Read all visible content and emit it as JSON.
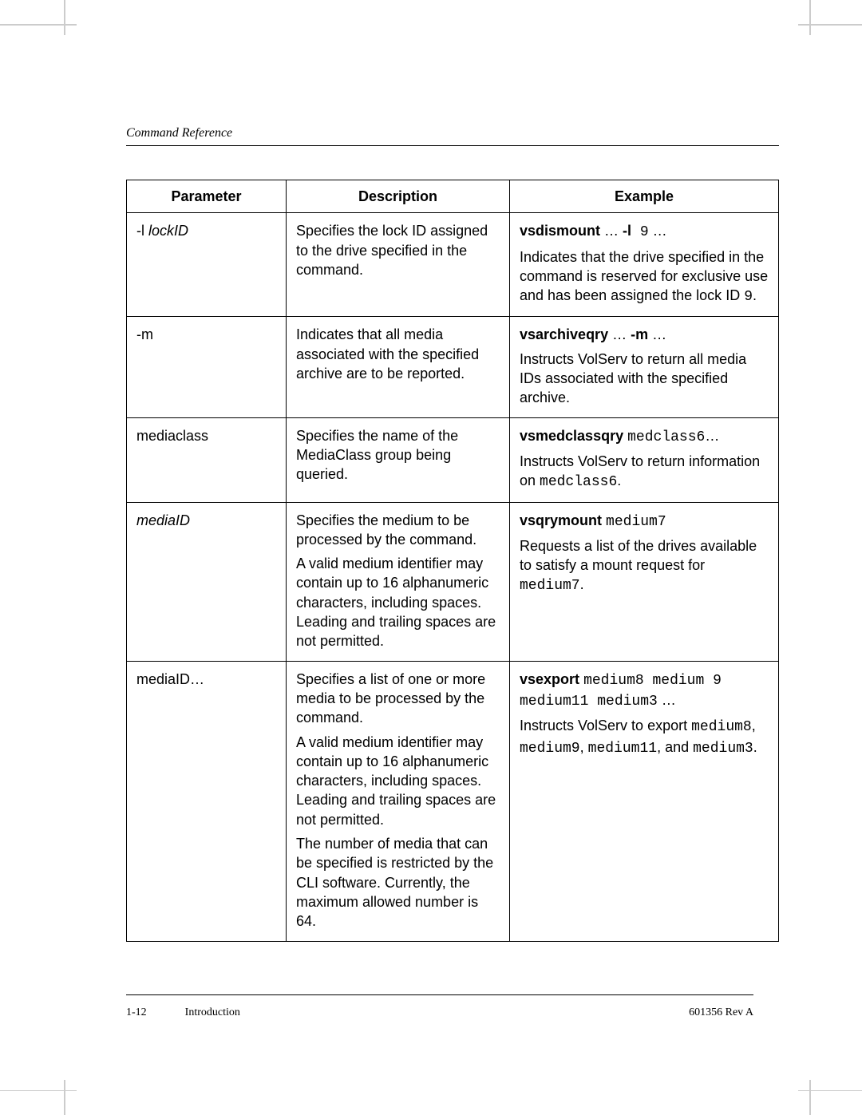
{
  "header": {
    "running_head": "Command Reference"
  },
  "table": {
    "columns": [
      "Parameter",
      "Description",
      "Example"
    ],
    "rows": [
      {
        "param_prefix": "-l ",
        "param_ital": "lockID",
        "param_suffix": "",
        "desc": [
          "Specifies the lock ID assigned to the drive specified in the command."
        ],
        "ex_cmd": "vsdismount",
        "ex_mid": " … ",
        "ex_flag": "-l",
        "ex_arg": " 9",
        "ex_tail": " …",
        "ex_body_pre": "Indicates that the drive specified in the command is reserved for exclusive use and has been assigned the lock ID ",
        "ex_body_mono": "9",
        "ex_body_post": "."
      },
      {
        "param_prefix": "-m",
        "param_ital": "",
        "param_suffix": "",
        "desc": [
          "Indicates that all media associated with the specified archive are to be reported."
        ],
        "ex_cmd": "vsarchiveqry",
        "ex_mid": " … ",
        "ex_flag": "-m",
        "ex_arg": "",
        "ex_tail": " …",
        "ex_body_pre": "Instructs VolServ to return all media IDs associated with the specified archive.",
        "ex_body_mono": "",
        "ex_body_post": ""
      },
      {
        "param_prefix": "mediaclass",
        "param_ital": "",
        "param_suffix": "",
        "desc": [
          "Specifies the name of the MediaClass group being queried."
        ],
        "ex_cmd": "vsmedclassqry",
        "ex_mid": " ",
        "ex_flag": "",
        "ex_arg": "medclass6",
        "ex_tail": "…",
        "ex_body_pre": "Instructs VolServ to return information on ",
        "ex_body_mono": "medclass6",
        "ex_body_post": "."
      },
      {
        "param_prefix": "",
        "param_ital": "mediaID",
        "param_suffix": "",
        "desc": [
          "Specifies the medium to be processed by the command.",
          "A valid medium identifier may contain up to 16 alphanumeric characters, including spaces. Leading and trailing spaces are not permitted."
        ],
        "ex_cmd": "vsqrymount",
        "ex_mid": " ",
        "ex_flag": "",
        "ex_arg": "medium7",
        "ex_tail": "",
        "ex_body_pre": "Requests a list of the drives available to satisfy a mount request for ",
        "ex_body_mono": "medium7",
        "ex_body_post": "."
      },
      {
        "param_prefix": "mediaID…",
        "param_ital": "",
        "param_suffix": "",
        "desc": [
          "Specifies a list of one or more media to be processed by the command.",
          "A valid medium identifier may contain up to 16 alphanumeric characters, including spaces. Leading and trailing spaces are not permitted.",
          "The number of media that can be specified is restricted by the CLI software. Currently, the maximum allowed number is 64."
        ],
        "ex_cmd": "vsexport",
        "ex_mid": " ",
        "ex_flag": "",
        "ex_arg": "medium8 medium 9 medium11 medium3",
        "ex_tail": " …",
        "ex_body_pre": "Instructs VolServ to export ",
        "ex_body_mono": "medium8",
        "ex_body_post": ", ",
        "ex_body_mono2": "medium9",
        "ex_body_post2": ", ",
        "ex_body_mono3": "medium11",
        "ex_body_post3": ", and ",
        "ex_body_mono4": "medium3",
        "ex_body_post4": "."
      }
    ]
  },
  "footer": {
    "page_num": "1-12",
    "section": "Introduction",
    "doc_rev": "601356 Rev A"
  }
}
